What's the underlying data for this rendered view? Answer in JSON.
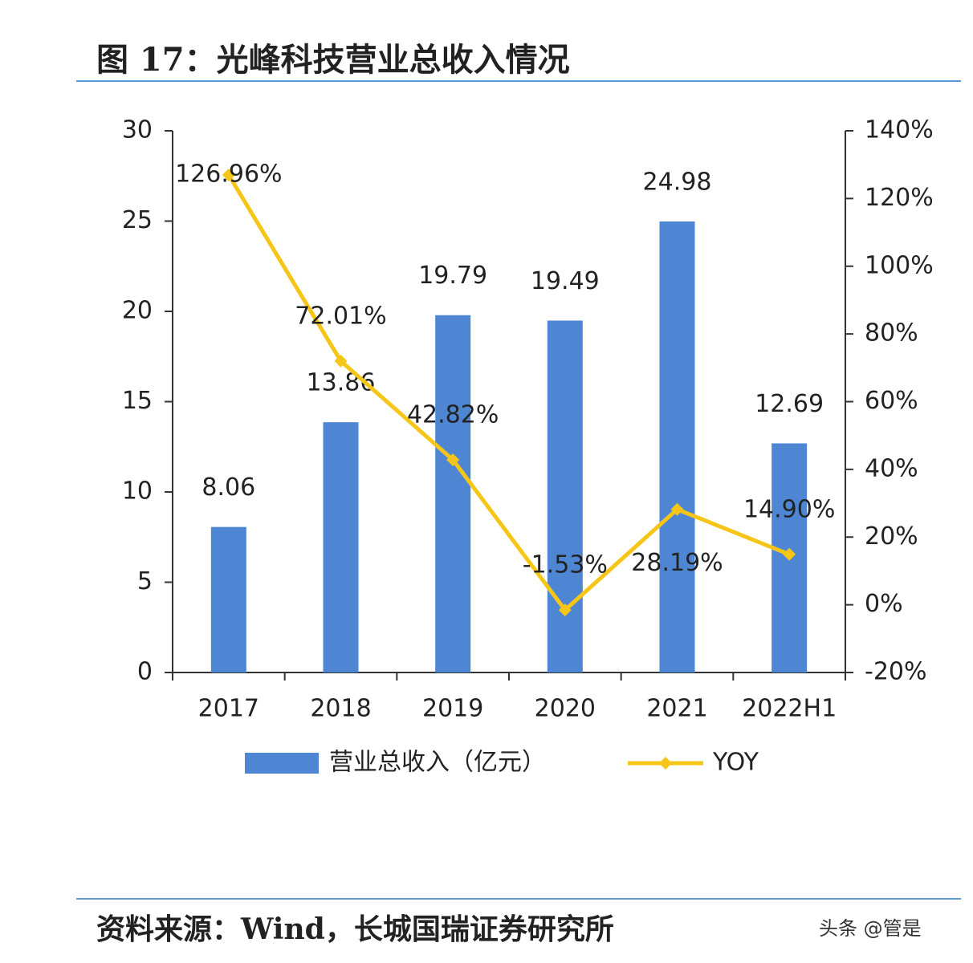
{
  "header": {
    "title": "图 17：光峰科技营业总收入情况"
  },
  "chart_data": {
    "type": "bar-line",
    "categories": [
      "2017",
      "2018",
      "2019",
      "2020",
      "2021",
      "2022H1"
    ],
    "series": [
      {
        "name": "营业总收入（亿元）",
        "type": "bar",
        "color": "#4f86d4",
        "values": [
          8.06,
          13.86,
          19.79,
          19.49,
          24.98,
          12.69
        ]
      },
      {
        "name": "YOY",
        "type": "line",
        "axis": "y2",
        "color": "#f5c518",
        "values": [
          126.96,
          72.01,
          42.82,
          -1.53,
          28.19,
          14.9
        ],
        "value_labels": [
          "126.96%",
          "72.01%",
          "42.82%",
          "-1.53%",
          "28.19%",
          "14.90%"
        ]
      }
    ],
    "ylim": [
      0,
      30
    ],
    "yticks": [
      0,
      5,
      10,
      15,
      20,
      25,
      30
    ],
    "y2lim": [
      -20,
      140
    ],
    "y2ticks": [
      {
        "value": -20,
        "label": "-20%"
      },
      {
        "value": 0,
        "label": "0%"
      },
      {
        "value": 20,
        "label": "20%"
      },
      {
        "value": 40,
        "label": "40%"
      },
      {
        "value": 60,
        "label": "60%"
      },
      {
        "value": 80,
        "label": "80%"
      },
      {
        "value": 100,
        "label": "100%"
      },
      {
        "value": 120,
        "label": "120%"
      },
      {
        "value": 140,
        "label": "140%"
      }
    ]
  },
  "footer": {
    "source": "资料来源：Wind，长城国瑞证券研究所",
    "watermark": "头条 @管是"
  }
}
